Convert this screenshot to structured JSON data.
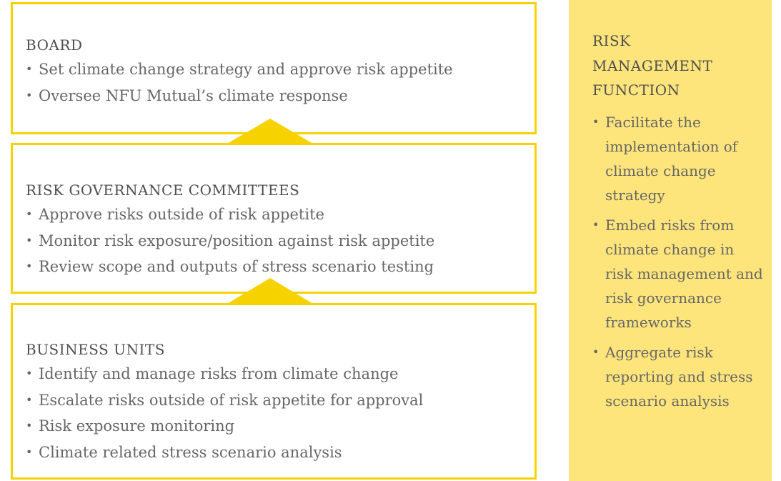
{
  "boxes": [
    {
      "title": "BOARD",
      "items": [
        "Set climate change strategy and approve risk appetite",
        "Oversee NFU Mutual’s climate response"
      ]
    },
    {
      "title": "RISK GOVERNANCE COMMITTEES",
      "items": [
        "Approve risks outside of risk appetite",
        "Monitor risk exposure/position against risk appetite",
        "Review scope and outputs of stress scenario testing"
      ]
    },
    {
      "title": "BUSINESS UNITS",
      "items": [
        "Identify and manage risks from climate change",
        "Escalate risks outside of risk appetite for approval",
        "Risk exposure monitoring",
        "Climate related stress scenario analysis"
      ]
    }
  ],
  "side_panel": {
    "title": "RISK MANAGEMENT FUNCTION",
    "items": [
      "Facilitate the implementation of climate change strategy",
      "Embed risks from climate change in risk management and risk governance frameworks",
      "Aggregate risk reporting and stress scenario analysis"
    ]
  }
}
